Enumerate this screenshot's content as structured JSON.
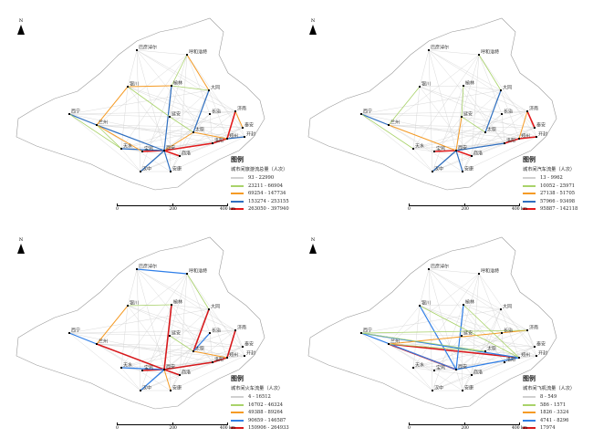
{
  "north_label": "N",
  "scale": {
    "ticks": [
      "0",
      "200",
      "400 km"
    ]
  },
  "legend_title": "图例",
  "panels": [
    {
      "subtitle": "城市间旅游流总量（人次）",
      "classes": [
        {
          "label": "93 - 22990",
          "color": "#d0d0d0"
        },
        {
          "label": "23211 - 66904",
          "color": "#a9d36a"
        },
        {
          "label": "69254 - 147734",
          "color": "#f59b25"
        },
        {
          "label": "153274 - 253155",
          "color": "#2f6fc0"
        },
        {
          "label": "263050 - 397940",
          "color": "#e31a1c"
        }
      ],
      "flows": [
        [
          "西安",
          "宝鸡",
          4
        ],
        [
          "西安",
          "商洛",
          4
        ],
        [
          "西安",
          "洛阳",
          4
        ],
        [
          "洛阳",
          "郑州",
          4
        ],
        [
          "郑州",
          "济南",
          4
        ],
        [
          "西安",
          "兰州",
          3
        ],
        [
          "西安",
          "榆林",
          3
        ],
        [
          "西安",
          "汉中",
          3
        ],
        [
          "西安",
          "安康",
          3
        ],
        [
          "兰州",
          "西宁",
          3
        ],
        [
          "太原",
          "大同",
          3
        ],
        [
          "郑州",
          "开封",
          3
        ],
        [
          "西安",
          "天水",
          3
        ],
        [
          "银川",
          "榆林",
          2
        ],
        [
          "兰州",
          "银川",
          2
        ],
        [
          "太原",
          "西安",
          2
        ],
        [
          "郑州",
          "太原",
          2
        ],
        [
          "兰州",
          "宝鸡",
          2
        ],
        [
          "大同",
          "呼和浩特",
          2
        ],
        [
          "济南",
          "泰安",
          2
        ],
        [
          "延安",
          "太原",
          1
        ],
        [
          "榆林",
          "大同",
          1
        ],
        [
          "兰州",
          "天水",
          1
        ],
        [
          "银川",
          "延安",
          1
        ],
        [
          "西宁",
          "天水",
          1
        ],
        [
          "呼和浩特",
          "榆林",
          1
        ]
      ]
    },
    {
      "subtitle": "城市间汽车流量（人次）",
      "classes": [
        {
          "label": "13 - 9962",
          "color": "#d0d0d0"
        },
        {
          "label": "10052 - 25971",
          "color": "#a9d36a"
        },
        {
          "label": "27138 - 51705",
          "color": "#f59b25"
        },
        {
          "label": "57966 - 93498",
          "color": "#2f6fc0"
        },
        {
          "label": "95887 - 142118",
          "color": "#e31a1c"
        }
      ],
      "flows": [
        [
          "西安",
          "宝鸡",
          4
        ],
        [
          "西安",
          "商洛",
          4
        ],
        [
          "西安",
          "洛阳",
          3
        ],
        [
          "洛阳",
          "郑州",
          4
        ],
        [
          "郑州",
          "开封",
          4
        ],
        [
          "济南",
          "泰安",
          4
        ],
        [
          "太原",
          "大同",
          3
        ],
        [
          "西安",
          "汉中",
          3
        ],
        [
          "西安",
          "安康",
          3
        ],
        [
          "兰州",
          "西宁",
          3
        ],
        [
          "郑州",
          "济南",
          2
        ],
        [
          "西安",
          "兰州",
          2
        ],
        [
          "西安",
          "延安",
          2
        ],
        [
          "兰州",
          "银川",
          1
        ],
        [
          "榆林",
          "延安",
          1
        ],
        [
          "太原",
          "延安",
          1
        ],
        [
          "呼和浩特",
          "大同",
          1
        ],
        [
          "西宁",
          "天水",
          1
        ]
      ]
    },
    {
      "subtitle": "城市间火车流量（人次）",
      "classes": [
        {
          "label": "4 - 16512",
          "color": "#d0d0d0"
        },
        {
          "label": "16702 - 46324",
          "color": "#a9d36a"
        },
        {
          "label": "49388 - 89264",
          "color": "#f59b25"
        },
        {
          "label": "90659 - 146587",
          "color": "#2f7fe8"
        },
        {
          "label": "150906 - 264933",
          "color": "#d7191c"
        }
      ],
      "flows": [
        [
          "西安",
          "榆林",
          4
        ],
        [
          "西安",
          "兰州",
          4
        ],
        [
          "西安",
          "宝鸡",
          4
        ],
        [
          "西安",
          "洛阳",
          4
        ],
        [
          "洛阳",
          "郑州",
          4
        ],
        [
          "太原",
          "大同",
          4
        ],
        [
          "西安",
          "商洛",
          4
        ],
        [
          "郑州",
          "济南",
          4
        ],
        [
          "西安",
          "汉中",
          3
        ],
        [
          "西安",
          "天水",
          3
        ],
        [
          "巴彦淖尔",
          "呼和浩特",
          3
        ],
        [
          "太原",
          "长治",
          3
        ],
        [
          "兰州",
          "西宁",
          3
        ],
        [
          "西安",
          "安康",
          2
        ],
        [
          "郑州",
          "太原",
          2
        ],
        [
          "兰州",
          "银川",
          2
        ],
        [
          "呼和浩特",
          "大同",
          1
        ],
        [
          "银川",
          "榆林",
          1
        ],
        [
          "延安",
          "太原",
          1
        ]
      ]
    },
    {
      "subtitle": "城市间飞机流量（人次）",
      "classes": [
        {
          "label": "8 - 549",
          "color": "#d0d0d0"
        },
        {
          "label": "586 - 1571",
          "color": "#a9d36a"
        },
        {
          "label": "1826 - 3324",
          "color": "#f59b25"
        },
        {
          "label": "4741 - 8296",
          "color": "#2f7fe8"
        },
        {
          "label": "17974",
          "color": "#d7191c"
        }
      ],
      "flows": [
        [
          "西安",
          "兰州",
          4
        ],
        [
          "兰州",
          "郑州",
          4
        ],
        [
          "西安",
          "西宁",
          3
        ],
        [
          "西安",
          "银川",
          3
        ],
        [
          "西安",
          "榆林",
          3
        ],
        [
          "西安",
          "郑州",
          3
        ],
        [
          "西宁",
          "郑州",
          3
        ],
        [
          "兰州",
          "济南",
          2
        ],
        [
          "西宁",
          "济南",
          1
        ],
        [
          "银川",
          "郑州",
          1
        ],
        [
          "榆林",
          "郑州",
          1
        ],
        [
          "兰州",
          "太原",
          1
        ],
        [
          "西宁",
          "太原",
          1
        ]
      ]
    }
  ],
  "cities": [
    "西宁",
    "兰州",
    "银川",
    "榆林",
    "延安",
    "呼和浩特",
    "巴彦淖尔",
    "大同",
    "太原",
    "长治",
    "西安",
    "宝鸡",
    "天水",
    "汉中",
    "安康",
    "商洛",
    "洛阳",
    "郑州",
    "开封",
    "济南",
    "泰安"
  ]
}
